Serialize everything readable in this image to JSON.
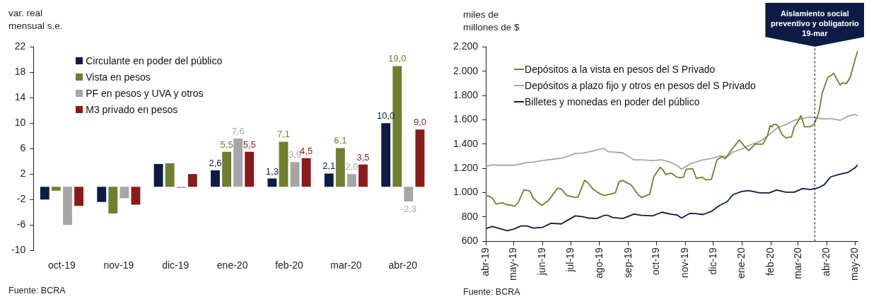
{
  "chart_data": [
    {
      "type": "bar",
      "ylabel": "var. real mensual s.e.",
      "categories": [
        "oct-19",
        "nov-19",
        "dic-19",
        "ene-20",
        "feb-20",
        "mar-20",
        "abr-20"
      ],
      "series": [
        {
          "name": "Circulante en poder del público",
          "color": "#0d1b45",
          "values": [
            -2.0,
            -2.4,
            3.6,
            2.6,
            1.3,
            2.1,
            10.0
          ],
          "value_labels": [
            null,
            null,
            null,
            "2,6",
            "1,3",
            "2,1",
            "10,0"
          ]
        },
        {
          "name": "Vista en pesos",
          "color": "#6f7f2e",
          "values": [
            -0.6,
            -4.2,
            3.7,
            5.5,
            7.1,
            6.1,
            19.0
          ],
          "value_labels": [
            null,
            null,
            null,
            "5,5",
            "7,1",
            "6,1",
            "19,0"
          ]
        },
        {
          "name": "PF en pesos y UVA y otros",
          "color": "#a6a6a6",
          "values": [
            -6.0,
            -1.8,
            -0.2,
            7.6,
            3.9,
            2.0,
            -2.3
          ],
          "value_labels": [
            null,
            null,
            null,
            "7,6",
            "3,9",
            "2,0",
            "-2,3"
          ]
        },
        {
          "name": "M3 privado en pesos",
          "color": "#8b1a1a",
          "values": [
            -3.0,
            -2.8,
            2.0,
            5.5,
            4.5,
            3.5,
            9.0
          ],
          "value_labels": [
            null,
            null,
            null,
            "5,5",
            "4,5",
            "3,5",
            "9,0"
          ]
        }
      ],
      "ylim": [
        -10,
        22
      ],
      "yticks": [
        -10,
        -6,
        -2,
        2,
        6,
        10,
        14,
        18,
        22
      ],
      "legend": "top left",
      "annotations": [
        "Fuente: BCRA"
      ]
    },
    {
      "type": "line",
      "ylabel": "miles de millones de $",
      "xlim": [
        "2019-04-01",
        "2020-05-04"
      ],
      "xticks": [
        {
          "value": "2019-04-01",
          "label": "abr-19"
        },
        {
          "value": "2019-05-01",
          "label": "may-19"
        },
        {
          "value": "2019-06-01",
          "label": "jun-19"
        },
        {
          "value": "2019-07-01",
          "label": "jul-19"
        },
        {
          "value": "2019-08-01",
          "label": "ago-19"
        },
        {
          "value": "2019-09-01",
          "label": "sep-19"
        },
        {
          "value": "2019-10-01",
          "label": "oct-19"
        },
        {
          "value": "2019-11-01",
          "label": "nov-19"
        },
        {
          "value": "2019-12-01",
          "label": "dic-19"
        },
        {
          "value": "2020-01-01",
          "label": "ene-20"
        },
        {
          "value": "2020-02-01",
          "label": "feb-20"
        },
        {
          "value": "2020-03-01",
          "label": "mar-20"
        },
        {
          "value": "2020-04-01",
          "label": "abr-20"
        },
        {
          "value": "2020-05-01",
          "label": "may-20"
        }
      ],
      "ylim": [
        600,
        2200
      ],
      "yticks": [
        600,
        800,
        {
          "value": 1000,
          "label": "1.000"
        },
        {
          "value": 1200,
          "label": "1.200"
        },
        {
          "value": 1400,
          "label": "1.400"
        },
        {
          "value": 1600,
          "label": "1.600"
        },
        {
          "value": 1800,
          "label": "1.800"
        },
        {
          "value": 2000,
          "label": "2.000"
        },
        {
          "value": 2200,
          "label": "2.200"
        }
      ],
      "x": [
        "2019-04-01",
        "2019-04-08",
        "2019-04-16",
        "2019-04-24",
        "2019-05-01",
        "2019-05-09",
        "2019-05-15",
        "2019-05-22",
        "2019-06-01",
        "2019-06-10",
        "2019-06-21",
        "2019-06-27",
        "2019-07-06",
        "2019-07-14",
        "2019-07-20",
        "2019-07-29",
        "2019-08-06",
        "2019-08-10",
        "2019-08-15",
        "2019-08-26",
        "2019-09-07",
        "2019-09-15",
        "2019-09-27",
        "2019-10-07",
        "2019-10-17",
        "2019-10-23",
        "2019-10-28",
        "2019-11-06",
        "2019-11-12",
        "2019-11-20",
        "2019-11-29",
        "2019-12-08",
        "2019-12-16",
        "2019-12-22",
        "2019-12-31",
        "2020-01-08",
        "2020-01-20",
        "2020-01-30",
        "2020-02-07",
        "2020-02-17",
        "2020-02-26",
        "2020-03-06",
        "2020-03-14",
        "2020-03-23",
        "2020-03-29",
        "2020-04-05",
        "2020-04-15",
        "2020-04-23",
        "2020-05-01",
        "2020-05-04"
      ],
      "series": [
        {
          "name": "Depósitos a la vista en pesos del S Privado",
          "color": "#6f7f2e",
          "x": [
            "2019-04-01",
            "2019-04-05",
            "2019-04-08",
            "2019-04-12",
            "2019-04-19",
            "2019-04-24",
            "2019-04-29",
            "2019-05-02",
            "2019-05-06",
            "2019-05-12",
            "2019-05-18",
            "2019-05-22",
            "2019-05-28",
            "2019-05-31",
            "2019-06-07",
            "2019-06-17",
            "2019-06-21",
            "2019-06-27",
            "2019-07-06",
            "2019-07-09",
            "2019-07-16",
            "2019-07-19",
            "2019-07-25",
            "2019-07-31",
            "2019-08-06",
            "2019-08-18",
            "2019-08-22",
            "2019-08-26",
            "2019-09-04",
            "2019-09-11",
            "2019-09-15",
            "2019-09-24",
            "2019-09-28",
            "2019-10-05",
            "2019-10-08",
            "2019-10-11",
            "2019-10-17",
            "2019-10-23",
            "2019-10-26",
            "2019-10-30",
            "2019-11-02",
            "2019-11-09",
            "2019-11-13",
            "2019-11-19",
            "2019-11-23",
            "2019-11-29",
            "2019-12-05",
            "2019-12-10",
            "2019-12-14",
            "2019-12-17",
            "2019-12-22",
            "2019-12-29",
            "2020-01-04",
            "2020-01-08",
            "2020-01-15",
            "2020-01-23",
            "2020-01-28",
            "2020-01-31",
            "2020-02-02",
            "2020-02-04",
            "2020-02-08",
            "2020-02-13",
            "2020-02-17",
            "2020-02-23",
            "2020-02-26",
            "2020-02-29",
            "2020-03-04",
            "2020-03-08",
            "2020-03-14",
            "2020-03-18",
            "2020-03-23",
            "2020-03-27",
            "2020-04-02",
            "2020-04-06",
            "2020-04-08",
            "2020-04-15",
            "2020-04-18",
            "2020-04-22",
            "2020-04-26",
            "2020-05-01",
            "2020-05-04"
          ],
          "values": [
            976,
            970,
            954,
            907,
            917,
            900,
            896,
            887,
            922,
            1024,
            1015,
            954,
            913,
            896,
            933,
            1037,
            1030,
            976,
            961,
            965,
            1102,
            1085,
            1030,
            998,
            976,
            998,
            1091,
            1100,
            1063,
            987,
            961,
            987,
            1128,
            1209,
            1187,
            1150,
            1161,
            1128,
            1124,
            1128,
            1193,
            1198,
            1117,
            1128,
            1106,
            1109,
            1270,
            1296,
            1280,
            1313,
            1367,
            1433,
            1378,
            1346,
            1400,
            1400,
            1465,
            1552,
            1542,
            1563,
            1557,
            1477,
            1451,
            1460,
            1542,
            1574,
            1634,
            1542,
            1542,
            1563,
            1650,
            1822,
            1952,
            1967,
            1984,
            1887,
            1904,
            1898,
            1952,
            2092,
            2168
          ]
        },
        {
          "name": "Depósitos a plazo fijo y otros en pesos del S Privado",
          "color": "#a6a6a6",
          "values": [
            1215,
            1230,
            1226,
            1226,
            1226,
            1237,
            1248,
            1252,
            1265,
            1274,
            1283,
            1296,
            1324,
            1326,
            1335,
            1352,
            1365,
            1339,
            1335,
            1328,
            1270,
            1270,
            1265,
            1270,
            1248,
            1226,
            1193,
            1237,
            1252,
            1270,
            1280,
            1302,
            1296,
            1335,
            1357,
            1389,
            1422,
            1476,
            1530,
            1561,
            1596,
            1611,
            1622,
            1613,
            1606,
            1611,
            1596,
            1628,
            1645,
            1632
          ]
        },
        {
          "name": "Billetes y monedas en poder del público",
          "color": "#0d1b45",
          "values": [
            704,
            722,
            704,
            687,
            700,
            726,
            726,
            709,
            715,
            748,
            743,
            770,
            809,
            802,
            791,
            787,
            813,
            813,
            796,
            787,
            824,
            813,
            809,
            839,
            822,
            817,
            791,
            830,
            828,
            820,
            846,
            896,
            926,
            983,
            1009,
            1017,
            998,
            998,
            1022,
            1004,
            1004,
            1035,
            1026,
            1041,
            1065,
            1130,
            1152,
            1165,
            1204,
            1230
          ]
        }
      ],
      "ref_lines": [
        {
          "axis": "x",
          "value": "2020-03-19",
          "label": "Aislamiento social preventivo y obligatorio 19-mar",
          "color": "#000000",
          "line_style": "dashed"
        }
      ],
      "legend": "top left",
      "annotations": [
        "Fuente: BCRA"
      ]
    }
  ]
}
